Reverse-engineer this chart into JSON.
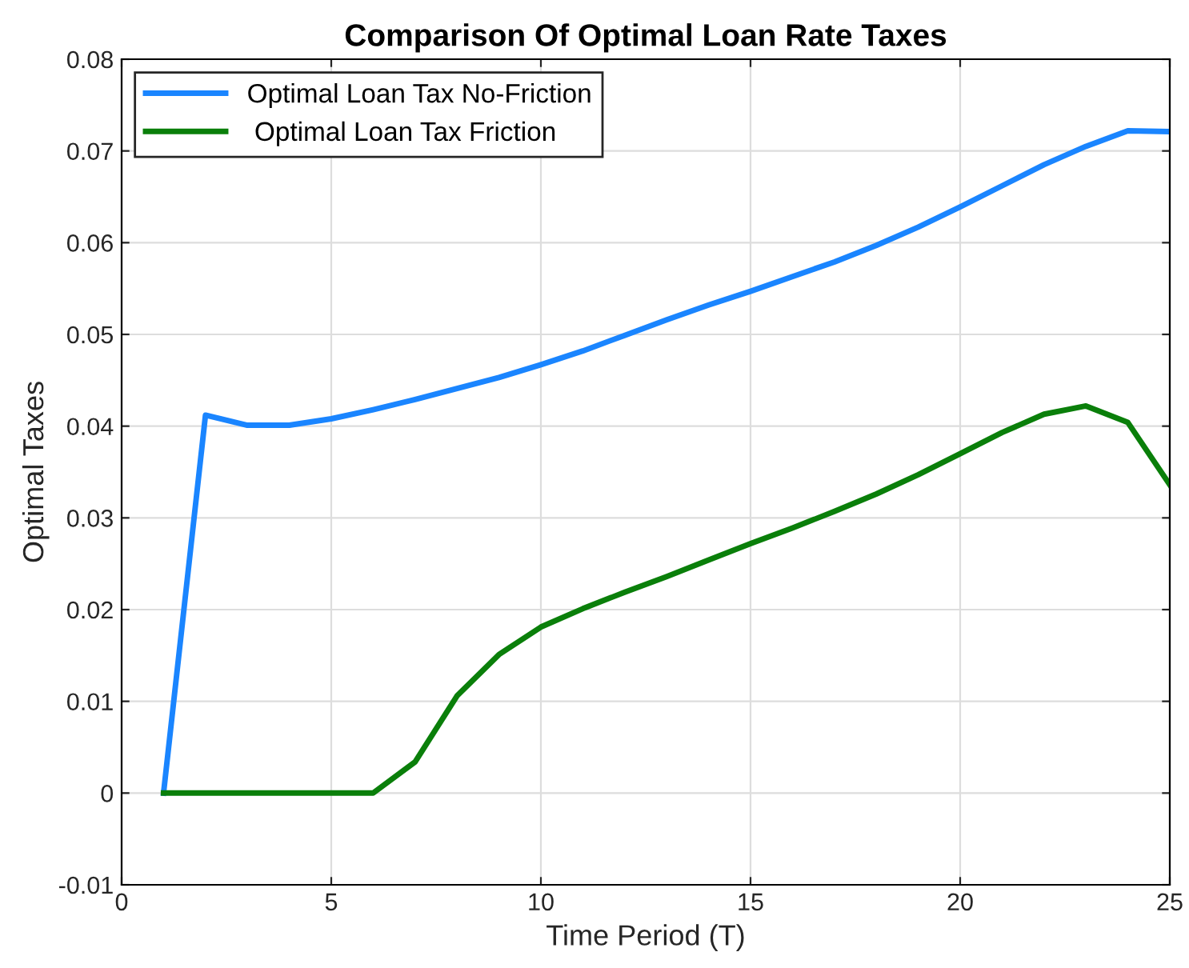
{
  "chart_data": {
    "type": "line",
    "title": "Comparison Of Optimal Loan Rate Taxes",
    "xlabel": "Time Period (T)",
    "ylabel": "Optimal Taxes",
    "x": [
      1,
      2,
      3,
      4,
      5,
      6,
      7,
      8,
      9,
      10,
      11,
      12,
      13,
      14,
      15,
      16,
      17,
      18,
      19,
      20,
      21,
      22,
      23,
      24,
      25
    ],
    "series": [
      {
        "name": "Optimal Loan Tax No-Friction",
        "color": "#1a85ff",
        "values": [
          0,
          0.0412,
          0.0401,
          0.0401,
          0.0408,
          0.0418,
          0.0429,
          0.0441,
          0.0453,
          0.0467,
          0.0482,
          0.0499,
          0.0516,
          0.0532,
          0.0547,
          0.0563,
          0.0579,
          0.0597,
          0.0617,
          0.0639,
          0.0662,
          0.0685,
          0.0705,
          0.0722,
          0.0721
        ]
      },
      {
        "name": " Optimal Loan Tax Friction",
        "color": "#0a7f0a",
        "values": [
          0,
          0,
          0,
          0,
          0,
          0,
          0.0034,
          0.0106,
          0.0151,
          0.0181,
          0.0201,
          0.0219,
          0.0236,
          0.0254,
          0.0272,
          0.0289,
          0.0307,
          0.0326,
          0.0347,
          0.037,
          0.0393,
          0.0413,
          0.0422,
          0.0404,
          0.0336
        ]
      }
    ],
    "xlim": [
      0,
      25
    ],
    "xticks": [
      0,
      5,
      10,
      15,
      20,
      25
    ],
    "ylim": [
      -0.01,
      0.08
    ],
    "yticks": [
      -0.01,
      0,
      0.01,
      0.02,
      0.03,
      0.04,
      0.05,
      0.06,
      0.07,
      0.08
    ],
    "grid": true,
    "legend": "top left",
    "marker": "none",
    "line_style": "solid"
  }
}
